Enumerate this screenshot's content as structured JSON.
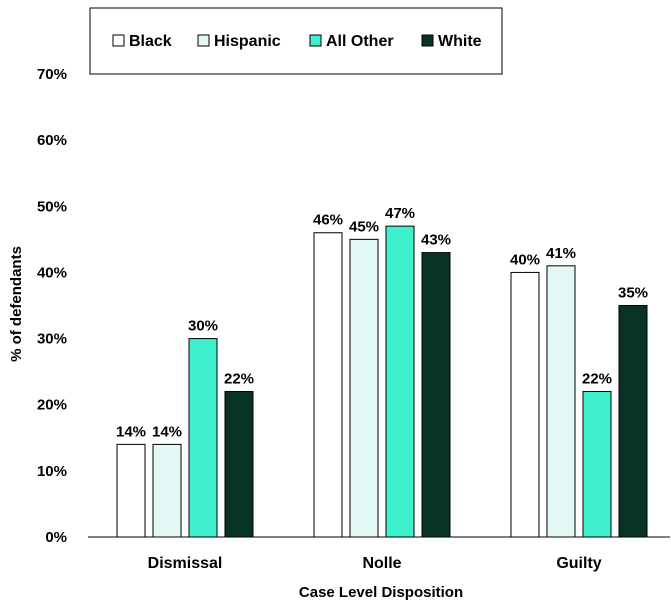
{
  "chart_data": {
    "type": "bar",
    "categories": [
      "Dismissal",
      "Nolle",
      "Guilty"
    ],
    "series": [
      {
        "name": "Black",
        "values": [
          14,
          46,
          40
        ],
        "labels": [
          "14%",
          "46%",
          "40%"
        ],
        "fill": "#ffffff",
        "stroke": "#000000"
      },
      {
        "name": "Hispanic",
        "values": [
          14,
          45,
          41
        ],
        "labels": [
          "14%",
          "45%",
          "41%"
        ],
        "fill": "#e3f8f4",
        "stroke": "#000000"
      },
      {
        "name": "All Other",
        "values": [
          30,
          47,
          22
        ],
        "labels": [
          "30%",
          "47%",
          "22%"
        ],
        "fill": "#3ff0cc",
        "stroke": "#000000"
      },
      {
        "name": "White",
        "values": [
          22,
          43,
          35
        ],
        "labels": [
          "22%",
          "43%",
          "35%"
        ],
        "fill": "#0a3328",
        "stroke": "#000000"
      }
    ],
    "xlabel": "Case Level Disposition",
    "ylabel": "% of defendants",
    "ylim": [
      0,
      70
    ],
    "yticks": [
      "0%",
      "10%",
      "20%",
      "30%",
      "40%",
      "50%",
      "60%",
      "70%"
    ],
    "grid": false,
    "legend": "top"
  }
}
